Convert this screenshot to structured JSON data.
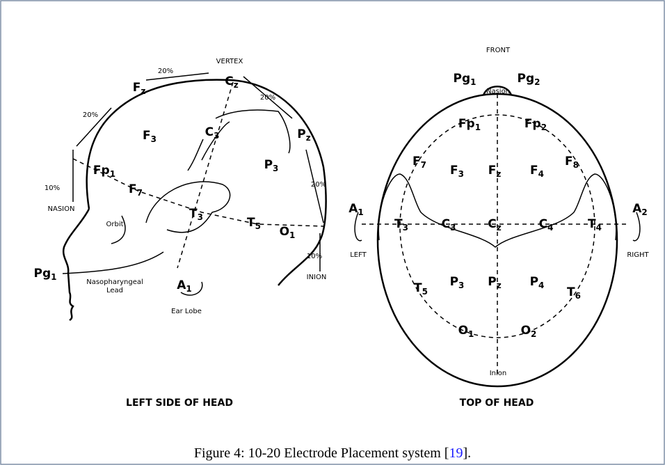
{
  "figure": {
    "left": {
      "title": "LEFT SIDE OF HEAD",
      "labels": [
        {
          "text": "VERTEX"
        },
        {
          "text": "C",
          "sub": "z"
        },
        {
          "text": "F",
          "sub": "z"
        },
        {
          "text": "F",
          "sub": "3"
        },
        {
          "text": "C",
          "sub": "3"
        },
        {
          "text": "P",
          "sub": "z"
        },
        {
          "text": "P",
          "sub": "3"
        },
        {
          "text": "Fp",
          "sub": "1"
        },
        {
          "text": "F",
          "sub": "7"
        },
        {
          "text": "T",
          "sub": "3"
        },
        {
          "text": "T",
          "sub": "5"
        },
        {
          "text": "O",
          "sub": "1"
        },
        {
          "text": "NASION"
        },
        {
          "text": "Orbit"
        },
        {
          "text": "Pg",
          "sub": "1"
        },
        {
          "text": "Nasopharyngeal"
        },
        {
          "text": "Lead"
        },
        {
          "text": "A",
          "sub": "1"
        },
        {
          "text": "Ear Lobe"
        },
        {
          "text": "INION"
        },
        {
          "text": "10%"
        },
        {
          "text": "10%"
        },
        {
          "text": "20%"
        },
        {
          "text": "20%"
        },
        {
          "text": "20%"
        },
        {
          "text": "20%"
        }
      ]
    },
    "right": {
      "title": "TOP OF HEAD",
      "labels": [
        {
          "text": "FRONT"
        },
        {
          "text": "Pg",
          "sub": "1"
        },
        {
          "text": "Pg",
          "sub": "2"
        },
        {
          "text": "Nasion"
        },
        {
          "text": "Fp",
          "sub": "1"
        },
        {
          "text": "Fp",
          "sub": "2"
        },
        {
          "text": "F",
          "sub": "7"
        },
        {
          "text": "F",
          "sub": "8"
        },
        {
          "text": "F",
          "sub": "3"
        },
        {
          "text": "F",
          "sub": "z"
        },
        {
          "text": "F",
          "sub": "4"
        },
        {
          "text": "A",
          "sub": "1"
        },
        {
          "text": "A",
          "sub": "2"
        },
        {
          "text": "T",
          "sub": "3"
        },
        {
          "text": "C",
          "sub": "3"
        },
        {
          "text": "C",
          "sub": "z"
        },
        {
          "text": "C",
          "sub": "4"
        },
        {
          "text": "T",
          "sub": "4"
        },
        {
          "text": "LEFT"
        },
        {
          "text": "RIGHT"
        },
        {
          "text": "P",
          "sub": "3"
        },
        {
          "text": "P",
          "sub": "z"
        },
        {
          "text": "P",
          "sub": "4"
        },
        {
          "text": "T",
          "sub": "5"
        },
        {
          "text": "T",
          "sub": "6"
        },
        {
          "text": "O",
          "sub": "1"
        },
        {
          "text": "O",
          "sub": "2"
        },
        {
          "text": "Inion"
        }
      ]
    },
    "caption": {
      "prefix": "Figure 4: 10-20 Electrode Placement system [",
      "ref": "19",
      "suffix": "]."
    }
  }
}
